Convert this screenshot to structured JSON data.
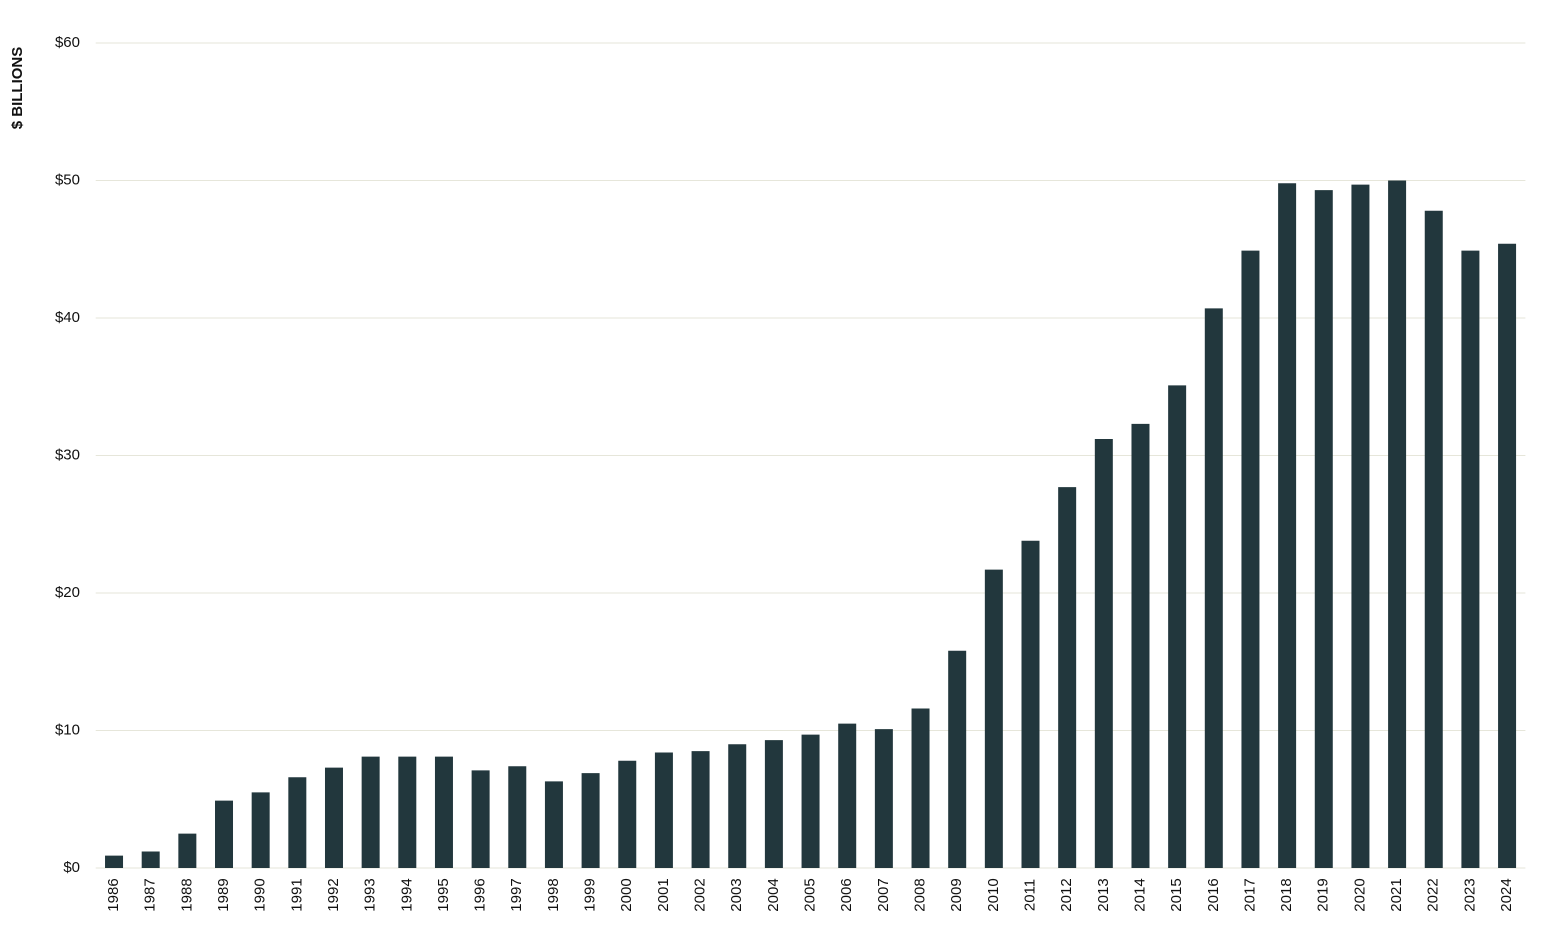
{
  "chart_data": {
    "type": "bar",
    "y_label": "$ BILLIONS",
    "categories": [
      "1986",
      "1987",
      "1988",
      "1989",
      "1990",
      "1991",
      "1992",
      "1993",
      "1994",
      "1995",
      "1996",
      "1997",
      "1998",
      "1999",
      "2000",
      "2001",
      "2002",
      "2003",
      "2004",
      "2005",
      "2006",
      "2007",
      "2008",
      "2009",
      "2010",
      "2011",
      "2012",
      "2013",
      "2014",
      "2015",
      "2016",
      "2017",
      "2018",
      "2019",
      "2020",
      "2021",
      "2022",
      "2023",
      "2024"
    ],
    "values": [
      0.9,
      1.2,
      2.5,
      4.9,
      5.5,
      6.6,
      7.3,
      8.1,
      8.1,
      8.1,
      7.1,
      7.4,
      6.3,
      6.9,
      7.8,
      8.4,
      8.5,
      9.0,
      9.3,
      9.7,
      10.5,
      10.1,
      11.6,
      15.8,
      21.7,
      23.8,
      27.7,
      31.2,
      32.3,
      35.1,
      40.7,
      44.9,
      49.8,
      49.3,
      49.7,
      50.0,
      47.8,
      44.9,
      45.4
    ],
    "color": "#22373d",
    "ylim": [
      0,
      60
    ],
    "yticks": [
      {
        "value": 0,
        "label": "$0"
      },
      {
        "value": 10,
        "label": "$10"
      },
      {
        "value": 20,
        "label": "$20"
      },
      {
        "value": 30,
        "label": "$30"
      },
      {
        "value": 40,
        "label": "$40"
      },
      {
        "value": 50,
        "label": "$50"
      },
      {
        "value": 60,
        "label": "$60"
      }
    ],
    "grid": true
  }
}
